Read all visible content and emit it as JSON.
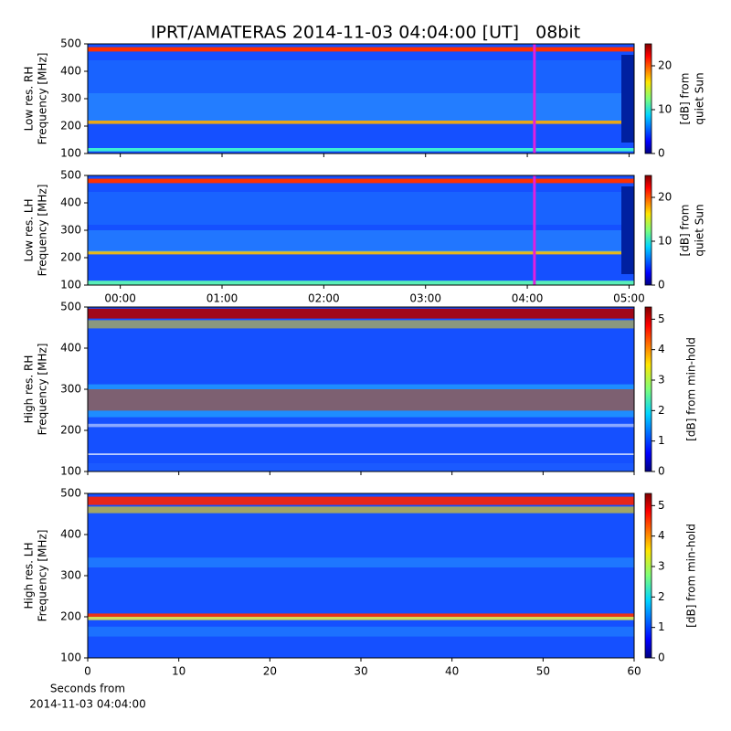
{
  "title": "IPRT/AMATERAS 2014-11-03 04:04:00 [UT]   08bit",
  "chart_data": [
    {
      "type": "spectrogram",
      "ylabel": [
        "Low res. RH",
        "Frequency [MHz]"
      ],
      "xlim": [
        -0.32,
        5.05
      ],
      "ylim": [
        100,
        500
      ],
      "yticks": [
        100,
        200,
        300,
        400,
        500
      ],
      "marker_x": 4.07,
      "marker_color": "#e020e0",
      "colormap": "jet",
      "clim": [
        0,
        25
      ],
      "cticks": [
        0,
        10,
        20
      ],
      "clabel": [
        "[dB] from",
        "quiet Sun"
      ]
    },
    {
      "type": "spectrogram",
      "ylabel": [
        "Low res. LH",
        "Frequency [MHz]"
      ],
      "xlim": [
        -0.32,
        5.05
      ],
      "ylim": [
        100,
        500
      ],
      "yticks": [
        100,
        200,
        300,
        400,
        500
      ],
      "xticks": [
        {
          "value": 0,
          "label": "00:00"
        },
        {
          "value": 1,
          "label": "01:00"
        },
        {
          "value": 2,
          "label": "02:00"
        },
        {
          "value": 3,
          "label": "03:00"
        },
        {
          "value": 4,
          "label": "04:00"
        },
        {
          "value": 5,
          "label": "05:00"
        }
      ],
      "marker_x": 4.07,
      "marker_color": "#e020e0",
      "colormap": "jet",
      "clim": [
        0,
        25
      ],
      "cticks": [
        0,
        10,
        20
      ],
      "clabel": [
        "[dB] from",
        "quiet Sun"
      ]
    },
    {
      "type": "spectrogram",
      "ylabel": [
        "High res. RH",
        "Frequency [MHz]"
      ],
      "xlim": [
        0,
        60
      ],
      "ylim": [
        100,
        500
      ],
      "yticks": [
        100,
        200,
        300,
        400,
        500
      ],
      "colormap": "jet",
      "clim": [
        0,
        5.4
      ],
      "cticks": [
        0,
        1,
        2,
        3,
        4,
        5
      ],
      "clabel": [
        "[dB] from min-hold"
      ]
    },
    {
      "type": "spectrogram",
      "ylabel": [
        "High res. LH",
        "Frequency [MHz]"
      ],
      "xlim": [
        0,
        60
      ],
      "ylim": [
        100,
        500
      ],
      "yticks": [
        100,
        200,
        300,
        400,
        500
      ],
      "xticks": [
        0,
        10,
        20,
        30,
        40,
        50,
        60
      ],
      "xlabel": [
        "Seconds from",
        "2014-11-03 04:04:00"
      ],
      "colormap": "jet",
      "clim": [
        0,
        5.4
      ],
      "cticks": [
        0,
        1,
        2,
        3,
        4,
        5
      ],
      "clabel": [
        "[dB] from min-hold"
      ]
    }
  ]
}
